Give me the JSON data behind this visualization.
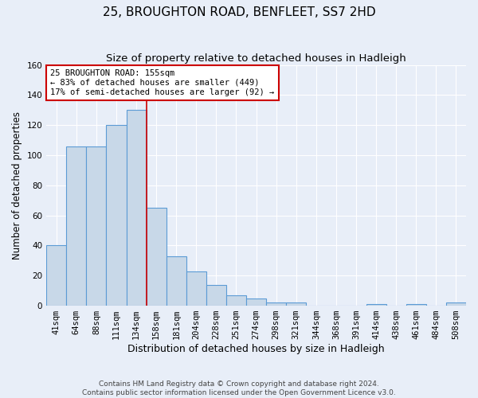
{
  "title": "25, BROUGHTON ROAD, BENFLEET, SS7 2HD",
  "subtitle": "Size of property relative to detached houses in Hadleigh",
  "xlabel": "Distribution of detached houses by size in Hadleigh",
  "ylabel": "Number of detached properties",
  "footer_line1": "Contains HM Land Registry data © Crown copyright and database right 2024.",
  "footer_line2": "Contains public sector information licensed under the Open Government Licence v3.0.",
  "categories": [
    "41sqm",
    "64sqm",
    "88sqm",
    "111sqm",
    "134sqm",
    "158sqm",
    "181sqm",
    "204sqm",
    "228sqm",
    "251sqm",
    "274sqm",
    "298sqm",
    "321sqm",
    "344sqm",
    "368sqm",
    "391sqm",
    "414sqm",
    "438sqm",
    "461sqm",
    "484sqm",
    "508sqm"
  ],
  "values": [
    40,
    106,
    106,
    120,
    130,
    65,
    33,
    23,
    14,
    7,
    5,
    2,
    2,
    0,
    0,
    0,
    1,
    0,
    1,
    0,
    2
  ],
  "bar_color": "#c8d8e8",
  "bar_edgecolor": "#5b9bd5",
  "bar_linewidth": 0.8,
  "annotation_line1": "25 BROUGHTON ROAD: 155sqm",
  "annotation_line2": "← 83% of detached houses are smaller (449)",
  "annotation_line3": "17% of semi-detached houses are larger (92) →",
  "annotation_box_color": "#ffffff",
  "annotation_box_edgecolor": "#cc0000",
  "ylim": [
    0,
    160
  ],
  "yticks": [
    0,
    20,
    40,
    60,
    80,
    100,
    120,
    140,
    160
  ],
  "background_color": "#e8eef8",
  "plot_background": "#e8eef8",
  "grid_color": "#ffffff",
  "title_fontsize": 11,
  "subtitle_fontsize": 9.5,
  "xlabel_fontsize": 9,
  "ylabel_fontsize": 8.5,
  "tick_fontsize": 7.5,
  "annotation_fontsize": 7.5,
  "footer_fontsize": 6.5,
  "red_line_index": 5.0
}
